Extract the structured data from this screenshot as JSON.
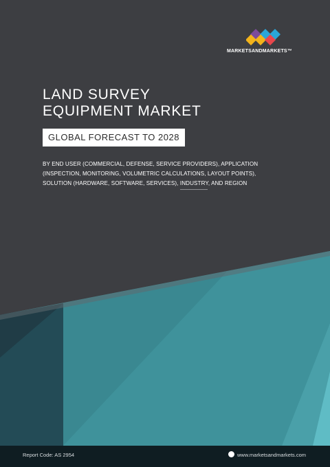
{
  "brand": {
    "logo_text": "MARKETSANDMARKETS™"
  },
  "cover": {
    "title_line1": "LAND SURVEY",
    "title_line2": "EQUIPMENT MARKET",
    "forecast_label": "GLOBAL FORECAST TO 2028",
    "subtitle_line1": "BY END USER (COMMERCIAL, DEFENSE, SERVICE PROVIDERS), APPLICATION",
    "subtitle_line2": "(INSPECTION, MONITORING, VOLUMETRIC CALCULATIONS, LAYOUT POINTS),",
    "subtitle_line3": "SOLUTION (HARDWARE, SOFTWARE, SERVICES), INDUSTRY, AND REGION"
  },
  "footer": {
    "report_code": "Report Code: AS 2954",
    "website": "www.marketsandmarkets.com"
  },
  "colors": {
    "background": "#3d3e42",
    "teal_main": "#3d8f97",
    "teal_dark": "#1e4a55",
    "teal_light": "#5db8c2",
    "footer": "#0f1d22",
    "logo_red": "#e8474c",
    "logo_blue": "#2aa6d8",
    "logo_yellow": "#f3b31b",
    "logo_purple": "#7c4b9b"
  }
}
